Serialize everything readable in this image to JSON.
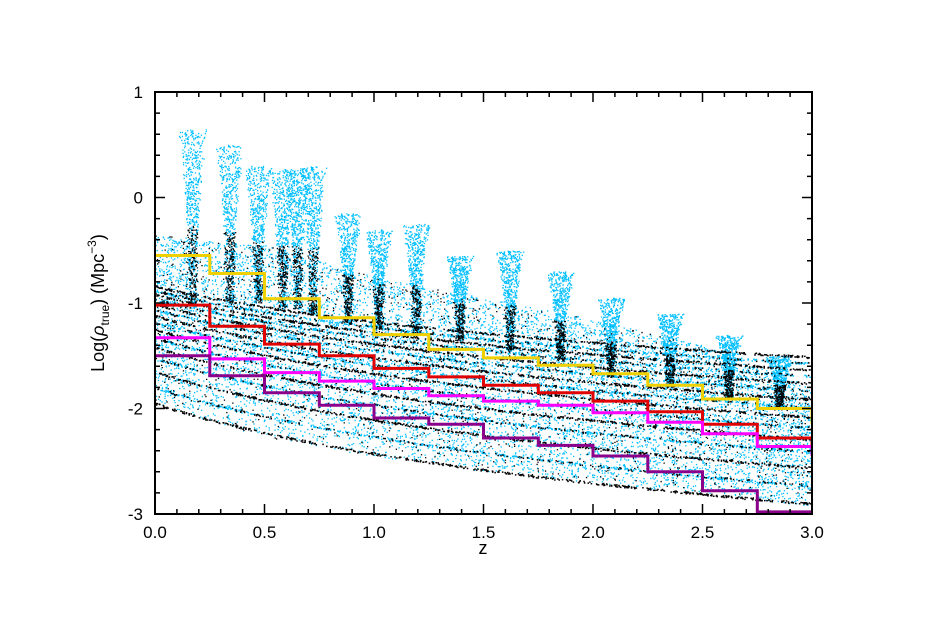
{
  "chart_data": {
    "type": "scatter",
    "title": "",
    "xlabel": "z",
    "ylabel": {
      "prefix": "Log(",
      "symbol": "ρ",
      "subscript": "true",
      "middle": ") (Mpc",
      "superscript": "−3",
      "suffix": ")"
    },
    "xlim": [
      0.0,
      3.0
    ],
    "ylim": [
      -3,
      1
    ],
    "x_ticks": [
      0.0,
      0.5,
      1.0,
      1.5,
      2.0,
      2.5,
      3.0
    ],
    "x_tick_labels": [
      "0.0",
      "0.5",
      "1.0",
      "1.5",
      "2.0",
      "2.5",
      "3.0"
    ],
    "y_ticks": [
      -3,
      -2,
      -1,
      0,
      1
    ],
    "y_tick_labels": [
      "-3",
      "-2",
      "-1",
      "0",
      "1"
    ],
    "grid": false,
    "legend": "none",
    "colors": {
      "scatter_primary": "#00bfff",
      "scatter_secondary": "#000000",
      "step_yellow": "#f0d000",
      "step_red": "#e00000",
      "step_magenta": "#ff00ff",
      "step_purple": "#8b008b"
    },
    "scatter_description": {
      "lower_envelope": [
        [
          0.0,
          -1.95
        ],
        [
          0.5,
          -2.27
        ],
        [
          1.0,
          -2.45
        ],
        [
          1.5,
          -2.6
        ],
        [
          2.0,
          -2.7
        ],
        [
          2.5,
          -2.8
        ],
        [
          3.0,
          -2.93
        ]
      ],
      "upper_envelope": [
        [
          0.0,
          -0.35
        ],
        [
          0.5,
          -0.45
        ],
        [
          1.0,
          -0.75
        ],
        [
          1.5,
          -0.95
        ],
        [
          2.0,
          -1.15
        ],
        [
          2.5,
          -1.4
        ],
        [
          3.0,
          -1.8
        ]
      ],
      "plumes": [
        {
          "x": 0.17,
          "ymin": -1.0,
          "ymax": 0.65
        },
        {
          "x": 0.34,
          "ymin": -1.0,
          "ymax": 0.5
        },
        {
          "x": 0.47,
          "ymin": -1.0,
          "ymax": 0.3
        },
        {
          "x": 0.58,
          "ymin": -1.05,
          "ymax": 0.27
        },
        {
          "x": 0.65,
          "ymin": -1.05,
          "ymax": 0.27
        },
        {
          "x": 0.72,
          "ymin": -1.1,
          "ymax": 0.3
        },
        {
          "x": 0.88,
          "ymin": -1.2,
          "ymax": -0.15
        },
        {
          "x": 1.02,
          "ymin": -1.25,
          "ymax": -0.3
        },
        {
          "x": 1.19,
          "ymin": -1.3,
          "ymax": -0.25
        },
        {
          "x": 1.39,
          "ymin": -1.35,
          "ymax": -0.55
        },
        {
          "x": 1.62,
          "ymin": -1.45,
          "ymax": -0.5
        },
        {
          "x": 1.85,
          "ymin": -1.55,
          "ymax": -0.7
        },
        {
          "x": 2.08,
          "ymin": -1.7,
          "ymax": -0.95
        },
        {
          "x": 2.35,
          "ymin": -1.8,
          "ymax": -1.1
        },
        {
          "x": 2.62,
          "ymin": -1.9,
          "ymax": -1.3
        },
        {
          "x": 2.85,
          "ymin": -2.0,
          "ymax": -1.5
        }
      ],
      "bands_start_y": [
        -1.95,
        -1.8,
        -1.65,
        -1.52,
        -1.42,
        -1.33,
        -1.25,
        -1.18,
        -1.12,
        -1.06,
        -1.01,
        -0.96,
        -0.92,
        -0.88,
        -0.84
      ]
    },
    "series": [
      {
        "color": "#f0d000",
        "bin_edges": [
          0,
          0.25,
          0.5,
          0.75,
          1.0,
          1.25,
          1.5,
          1.75,
          2.0,
          2.25,
          2.5,
          2.75,
          3.0
        ],
        "values": [
          -0.55,
          -0.72,
          -0.96,
          -1.14,
          -1.3,
          -1.44,
          -1.52,
          -1.59,
          -1.67,
          -1.78,
          -1.91,
          -2.0,
          -2.15
        ]
      },
      {
        "color": "#e00000",
        "bin_edges": [
          0,
          0.25,
          0.5,
          0.75,
          1.0,
          1.25,
          1.5,
          1.75,
          2.0,
          2.25,
          2.5,
          2.75,
          3.0
        ],
        "values": [
          -1.02,
          -1.22,
          -1.39,
          -1.5,
          -1.62,
          -1.7,
          -1.78,
          -1.85,
          -1.93,
          -2.03,
          -2.15,
          -2.28,
          -2.43
        ]
      },
      {
        "color": "#ff00ff",
        "bin_edges": [
          0,
          0.25,
          0.5,
          0.75,
          1.0,
          1.25,
          1.5,
          1.75,
          2.0,
          2.25,
          2.5,
          2.75,
          3.0
        ],
        "values": [
          -1.33,
          -1.53,
          -1.66,
          -1.74,
          -1.81,
          -1.88,
          -1.93,
          -1.97,
          -2.04,
          -2.13,
          -2.24,
          -2.36,
          -2.45
        ]
      },
      {
        "color": "#8b008b",
        "bin_edges": [
          0,
          0.25,
          0.5,
          0.75,
          1.0,
          1.25,
          1.5,
          1.75,
          2.0,
          2.25,
          2.5,
          2.75,
          3.0
        ],
        "values": [
          -1.5,
          -1.69,
          -1.85,
          -1.97,
          -2.09,
          -2.15,
          -2.28,
          -2.35,
          -2.45,
          -2.6,
          -2.78,
          -2.98,
          -3.0
        ]
      }
    ]
  }
}
